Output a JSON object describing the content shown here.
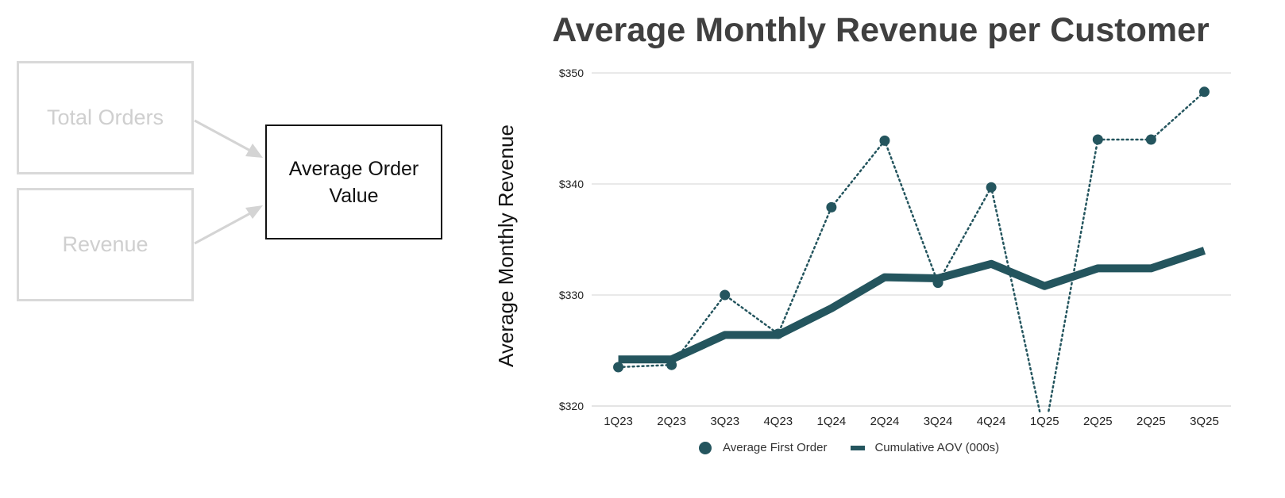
{
  "diagram": {
    "inputs": [
      {
        "label": "Total Orders"
      },
      {
        "label": "Revenue"
      }
    ],
    "output": {
      "line1": "Average Order",
      "line2": "Value"
    }
  },
  "chart_data": {
    "type": "line",
    "title": "Average Monthly Revenue per Customer",
    "xlabel": "",
    "ylabel": "Average Monthly Revenue",
    "ylim": [
      320,
      350
    ],
    "yticks": [
      320,
      330,
      340,
      350
    ],
    "ytick_labels": [
      "$320",
      "$330",
      "$340",
      "$350"
    ],
    "grid": true,
    "legend_position": "bottom",
    "categories": [
      "1Q23",
      "2Q23",
      "3Q23",
      "4Q23",
      "1Q24",
      "2Q24",
      "3Q24",
      "4Q24",
      "1Q25",
      "2Q25",
      "2Q25",
      "3Q25"
    ],
    "series": [
      {
        "name": "Average First Order",
        "style": "dotted-markers",
        "color": "#24555e",
        "values": [
          323.5,
          323.7,
          330.0,
          326.5,
          337.9,
          343.9,
          331.1,
          339.7,
          317.5,
          344.0,
          344.0,
          348.3
        ]
      },
      {
        "name": "Cumulative AOV (000s)",
        "style": "thick-line",
        "color": "#24555e",
        "values": [
          324.2,
          324.2,
          326.4,
          326.4,
          328.8,
          331.6,
          331.5,
          332.8,
          330.8,
          332.4,
          332.4,
          334.0
        ]
      }
    ]
  }
}
